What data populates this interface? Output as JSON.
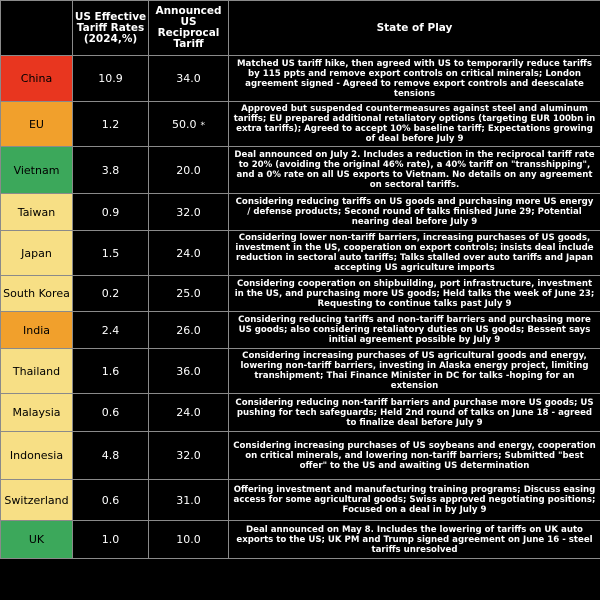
{
  "headers": {
    "country": "",
    "effective": "US Effective Tariff Rates (2024,%)",
    "announced": "Announced US Reciprocal Tariff",
    "state": "State of Play"
  },
  "colors": {
    "red": "#e8361f",
    "orange": "#f1a02c",
    "green": "#3ca85b",
    "yellow": "#f7df85"
  },
  "rows": [
    {
      "country": "China",
      "effective": "10.9",
      "announced": "34.0",
      "star": "",
      "color": "#e8361f",
      "play": "Matched US tariff hike, then agreed with US to temporarily reduce tariffs by 115 ppts and remove export controls on critical minerals; London agreement signed - Agreed to remove export controls and deescalate tensions"
    },
    {
      "country": "EU",
      "effective": "1.2",
      "announced": "50.0",
      "star": "*",
      "color": "#f1a02c",
      "play": "Approved but suspended countermeasures against steel and aluminum tariffs; EU prepared additional retaliatory options (targeting EUR 100bn in extra tariffs); Agreed to accept 10% baseline tariff; Expectations growing of deal before July 9"
    },
    {
      "country": "Vietnam",
      "effective": "3.8",
      "announced": "20.0",
      "star": "",
      "color": "#3ca85b",
      "play": "Deal announced on July 2. Includes a reduction in the reciprocal tariff rate to 20% (avoiding the original 46% rate), a 40% tariff on \"transshipping\", and a 0% rate on all US exports to Vietnam. No details on any agreement on sectoral tariffs."
    },
    {
      "country": "Taiwan",
      "effective": "0.9",
      "announced": "32.0",
      "star": "",
      "color": "#f7df85",
      "play": "Considering reducing tariffs on US goods and purchasing more US energy / defense products; Second round of talks finished June 29; Potential nearing deal before July 9"
    },
    {
      "country": "Japan",
      "effective": "1.5",
      "announced": "24.0",
      "star": "",
      "color": "#f7df85",
      "play": "Considering lower non-tariff barriers, increasing purchases of US goods, investment in the US, cooperation on export controls; insists deal include reduction in sectoral auto tariffs; Talks stalled over auto tariffs and Japan accepting US agriculture imports"
    },
    {
      "country": "South Korea",
      "effective": "0.2",
      "announced": "25.0",
      "star": "",
      "color": "#f7df85",
      "play": "Considering cooperation on shipbuilding, port infrastructure, investment in the US, and purchasing more US goods; Held talks the week of June 23; Requesting to continue talks past July 9"
    },
    {
      "country": "India",
      "effective": "2.4",
      "announced": "26.0",
      "star": "",
      "color": "#f1a02c",
      "play": "Considering reducing tariffs and non-tariff barriers and purchasing more US goods; also considering retaliatory duties on US goods; Bessent says initial agreement possible by July 9"
    },
    {
      "country": "Thailand",
      "effective": "1.6",
      "announced": "36.0",
      "star": "",
      "color": "#f7df85",
      "play": "Considering increasing purchases of US agricultural goods and energy, lowering non-tariff barriers, investing in Alaska energy project, limiting transhipment; Thai Finance Minister in DC for talks -hoping for an extension"
    },
    {
      "country": "Malaysia",
      "effective": "0.6",
      "announced": "24.0",
      "star": "",
      "color": "#f7df85",
      "play": "Considering reducing non-tariff barriers and purchase more US goods; US pushing for tech safeguards; Held 2nd round of talks on June 18 - agreed to finalize deal before July 9"
    },
    {
      "country": "Indonesia",
      "effective": "4.8",
      "announced": "32.0",
      "star": "",
      "color": "#f7df85",
      "play": "Considering increasing purchases of US soybeans and energy, cooperation on critical minerals, and lowering non-tariff barriers; Submitted \"best offer\" to the US and awaiting US determination"
    },
    {
      "country": "Switzerland",
      "effective": "0.6",
      "announced": "31.0",
      "star": "",
      "color": "#f7df85",
      "play": "Offering investment and manufacturing training programs; Discuss easing access for some agricultural goods; Swiss approved negotiating positions; Focused on a deal in by July 9"
    },
    {
      "country": "UK",
      "effective": "1.0",
      "announced": "10.0",
      "star": "",
      "color": "#3ca85b",
      "play": "Deal announced on May 8. Includes the lowering of tariffs on UK auto exports to the US; UK PM and Trump signed agreement on June 16 - steel tariffs unresolved"
    }
  ]
}
